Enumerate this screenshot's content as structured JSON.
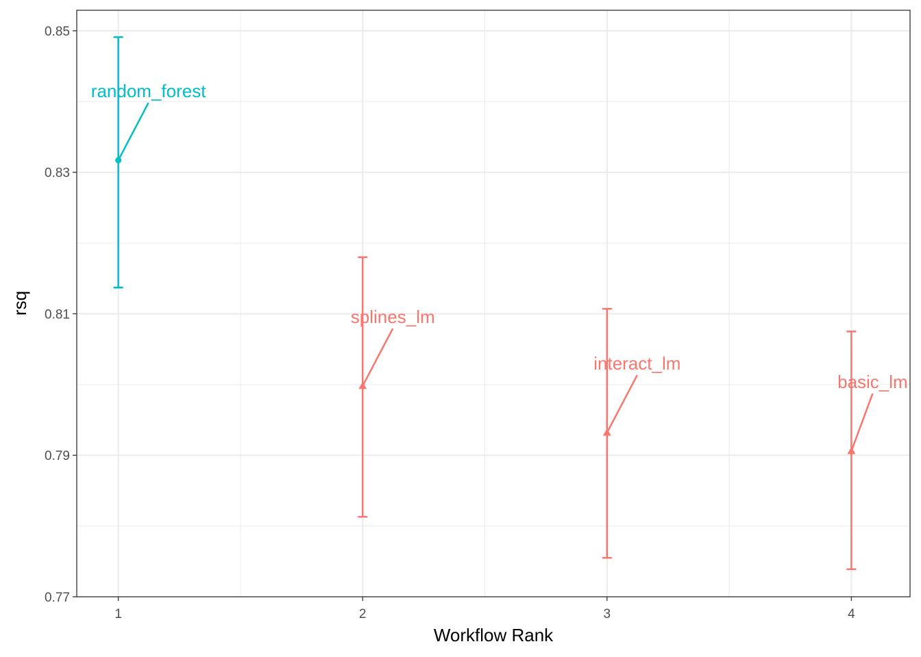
{
  "chart_data": {
    "type": "scatter",
    "title": "",
    "xlabel": "Workflow Rank",
    "ylabel": "rsq",
    "xlim": [
      0.83,
      4.24
    ],
    "ylim": [
      0.77,
      0.8529
    ],
    "x_ticks": [
      "1",
      "2",
      "3",
      "4"
    ],
    "y_ticks": [
      "0.77",
      "0.79",
      "0.81",
      "0.83",
      "0.85"
    ],
    "grid": true,
    "legend": "none",
    "colors": {
      "random_forest": "#00BFC4",
      "lm": "#F8766D"
    },
    "points": [
      {
        "rank": 1,
        "label": "random_forest",
        "rsq": 0.8317,
        "lower": 0.8137,
        "upper": 0.8491,
        "shape": "circle",
        "color": "#00BFC4"
      },
      {
        "rank": 2,
        "label": "splines_lm",
        "rsq": 0.7998,
        "lower": 0.7813,
        "upper": 0.818,
        "shape": "triangle",
        "color": "#F8766D"
      },
      {
        "rank": 3,
        "label": "interact_lm",
        "rsq": 0.7932,
        "lower": 0.7755,
        "upper": 0.8107,
        "shape": "triangle",
        "color": "#F8766D"
      },
      {
        "rank": 4,
        "label": "basic_lm",
        "rsq": 0.7906,
        "lower": 0.7739,
        "upper": 0.8075,
        "shape": "triangle",
        "color": "#F8766D"
      }
    ]
  }
}
